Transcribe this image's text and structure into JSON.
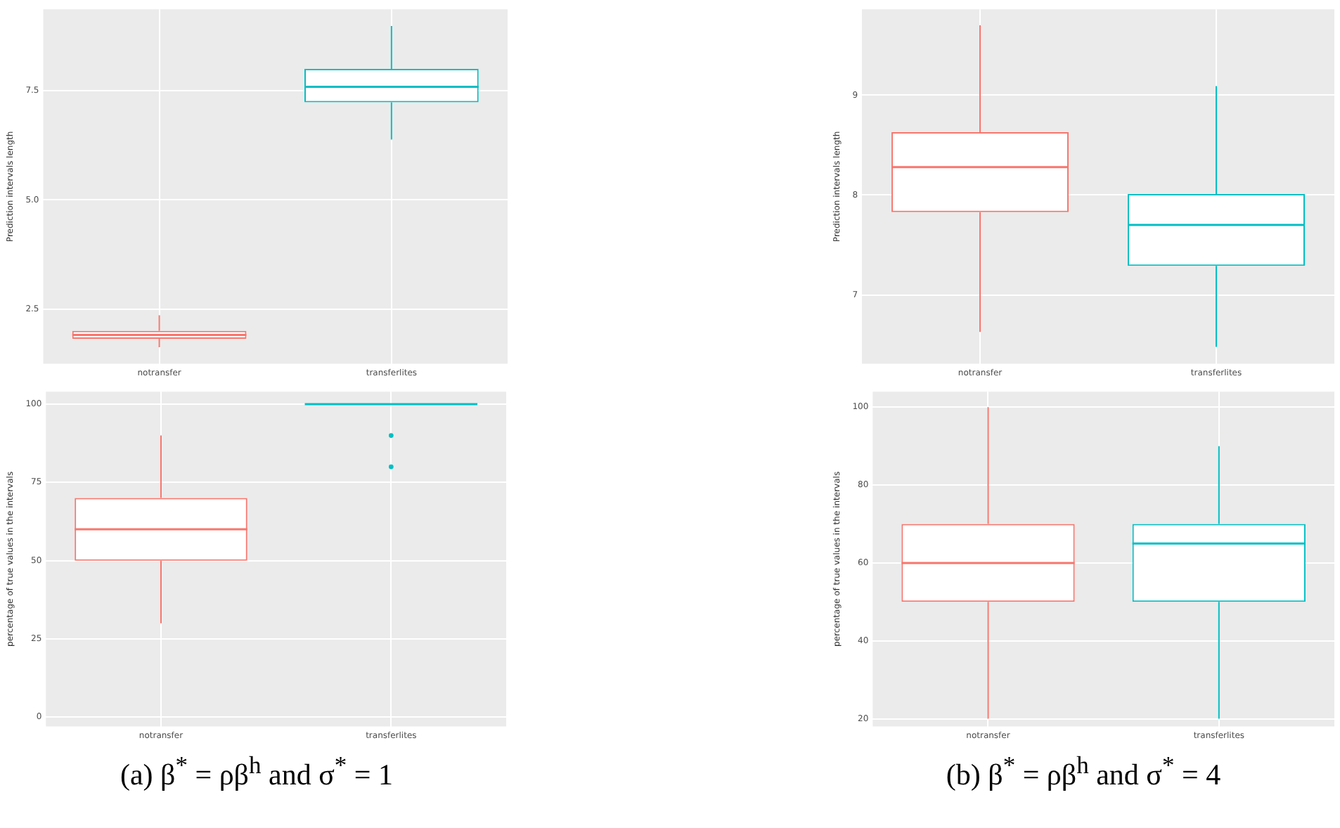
{
  "chart_data": [
    {
      "type": "box",
      "ylabel": "Prediction intervals length",
      "categories": [
        "notransfer",
        "transferlites"
      ],
      "colors": [
        "#f8766d",
        "#00bfc4"
      ],
      "ylim": [
        1.26,
        9.35
      ],
      "yticks": [
        {
          "value": 2.5,
          "label": "2.5"
        },
        {
          "value": 5,
          "label": "5.0"
        },
        {
          "value": 7.5,
          "label": "7.5"
        }
      ],
      "grid": true,
      "legend": false,
      "boxes": [
        {
          "low": 1.64,
          "q1": 1.83,
          "median": 1.92,
          "q3": 2.01,
          "high": 2.37
        },
        {
          "low": 6.38,
          "q1": 7.23,
          "median": 7.58,
          "q3": 7.99,
          "high": 8.97
        }
      ]
    },
    {
      "type": "box",
      "ylabel": "Prediction intervals length",
      "categories": [
        "notransfer",
        "transferlites"
      ],
      "colors": [
        "#f8766d",
        "#00bfc4"
      ],
      "ylim": [
        6.31,
        9.86
      ],
      "yticks": [
        7,
        8,
        9
      ],
      "grid": true,
      "legend": false,
      "boxes": [
        {
          "low": 6.63,
          "q1": 7.83,
          "median": 8.28,
          "q3": 8.63,
          "high": 9.7
        },
        {
          "low": 6.48,
          "q1": 7.29,
          "median": 7.7,
          "q3": 8.01,
          "high": 9.09
        }
      ]
    },
    {
      "type": "box",
      "ylabel": "percentage of true values in the intervals",
      "categories": [
        "notransfer",
        "transferlites"
      ],
      "colors": [
        "#f8766d",
        "#00bfc4"
      ],
      "ylim": [
        -3,
        104
      ],
      "yticks": [
        0,
        25,
        50,
        75,
        100
      ],
      "grid": true,
      "legend": false,
      "annotations": [
        "(a) β$^{*}$ = ρβ$^{h}$ and σ$^{*}$ = 1"
      ],
      "boxes": [
        {
          "low": 30,
          "q1": 50,
          "median": 60,
          "q3": 70,
          "high": 90
        },
        {
          "low": 100,
          "q1": 100,
          "median": 100,
          "q3": 100,
          "high": 100,
          "outliers": [
            90,
            80
          ]
        }
      ]
    },
    {
      "type": "box",
      "ylabel": "percentage of true values in the intervals",
      "categories": [
        "notransfer",
        "transferlites"
      ],
      "colors": [
        "#f8766d",
        "#00bfc4"
      ],
      "ylim": [
        18,
        104
      ],
      "yticks": [
        20,
        40,
        60,
        80,
        100
      ],
      "grid": true,
      "legend": false,
      "annotations": [
        "(b) β$^{*}$ = ρβ$^{h}$ and σ$^{*}$ = 4"
      ],
      "boxes": [
        {
          "low": 20,
          "q1": 50,
          "median": 60,
          "q3": 70,
          "high": 100
        },
        {
          "low": 20,
          "q1": 50,
          "median": 65,
          "q3": 70,
          "high": 90
        }
      ]
    }
  ]
}
